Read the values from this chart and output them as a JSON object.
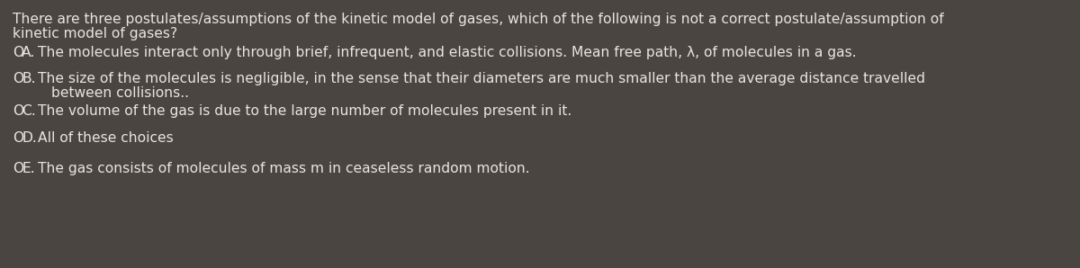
{
  "background_color": "#4a4540",
  "text_color": "#e8e4e0",
  "title_text1": "There are three postulates/assumptions of the kinetic model of gases, which of the following is not a correct postulate/assumption of",
  "title_text2": "kinetic model of gases?",
  "options": [
    {
      "label": "A.",
      "prefix": "O",
      "text": "The molecules interact only through brief, infrequent, and elastic collisions. Mean free path, λ, of molecules in a gas."
    },
    {
      "label": "B.",
      "prefix": "O",
      "text_line1": "The size of the molecules is negligible, in the sense that their diameters are much smaller than the average distance travelled",
      "text_line2": "between collisions..",
      "text": "The size of the molecules is negligible, in the sense that their diameters are much smaller than the average distance travelled\nbetween collisions.."
    },
    {
      "label": "C.",
      "prefix": "O",
      "text": "The volume of the gas is due to the large number of molecules present in it."
    },
    {
      "label": "D.",
      "prefix": "O",
      "text": "All of these choices"
    },
    {
      "label": "E.",
      "prefix": "O",
      "text": "The gas consists of molecules of mass m in ceaseless random motion."
    }
  ],
  "title_fontsize": 11.2,
  "option_fontsize": 11.2,
  "figsize": [
    12.0,
    2.98
  ],
  "dpi": 100
}
